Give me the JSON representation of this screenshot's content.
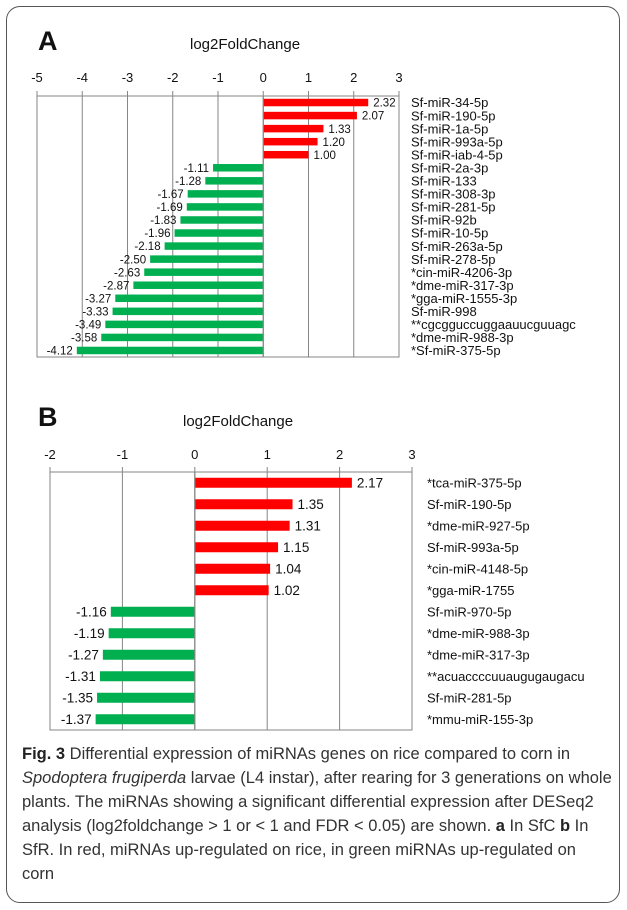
{
  "chart_data": [
    {
      "type": "bar",
      "orientation": "horizontal",
      "panel": "A",
      "title": "log2FoldChange",
      "xlim": [
        -5,
        3
      ],
      "ticks": [
        -5,
        -4,
        -3,
        -2,
        -1,
        0,
        1,
        2,
        3
      ],
      "grid": true,
      "colors": {
        "positive": "#ff0000",
        "negative": "#00b050"
      },
      "categories": [
        "Sf-miR-34-5p",
        "Sf-miR-190-5p",
        "Sf-miR-1a-5p",
        "Sf-miR-993a-5p",
        "Sf-miR-iab-4-5p",
        "Sf-miR-2a-3p",
        "Sf-miR-133",
        "Sf-miR-308-3p",
        "Sf-miR-281-5p",
        "Sf-miR-92b",
        "Sf-miR-10-5p",
        "Sf-miR-263a-5p",
        "Sf-miR-278-5p",
        "*cin-miR-4206-3p",
        "*dme-miR-317-3p",
        "*gga-miR-1555-3p",
        "Sf-miR-998",
        "**cgcgguccuggaauucguuagc",
        "*dme-miR-988-3p",
        "*Sf-miR-375-5p"
      ],
      "values": [
        2.32,
        2.07,
        1.33,
        1.2,
        1.0,
        -1.11,
        -1.28,
        -1.67,
        -1.69,
        -1.83,
        -1.96,
        -2.18,
        -2.5,
        -2.63,
        -2.87,
        -3.27,
        -3.33,
        -3.49,
        -3.58,
        -4.12
      ],
      "labels": [
        "2.32",
        "2.07",
        "1.33",
        "1.20",
        "1.00",
        "-1.11",
        "-1.28",
        "-1.67",
        "-1.69",
        "-1.83",
        "-1.96",
        "-2.18",
        "-2.50",
        "-2.63",
        "-2.87",
        "-3.27",
        "-3.33",
        "-3.49",
        "-3.58",
        "-4.12"
      ]
    },
    {
      "type": "bar",
      "orientation": "horizontal",
      "panel": "B",
      "title": "log2FoldChange",
      "xlim": [
        -2,
        3
      ],
      "ticks": [
        -2,
        -1,
        0,
        1,
        2,
        3
      ],
      "grid": true,
      "colors": {
        "positive": "#ff0000",
        "negative": "#00b050"
      },
      "categories": [
        "*tca-miR-375-5p",
        "Sf-miR-190-5p",
        "*dme-miR-927-5p",
        "Sf-miR-993a-5p",
        "*cin-miR-4148-5p",
        "*gga-miR-1755",
        "Sf-miR-970-5p",
        "*dme-miR-988-3p",
        "*dme-miR-317-3p",
        "**acuaccccuuaugugaugacu",
        "Sf-miR-281-5p",
        "*mmu-miR-155-3p"
      ],
      "values": [
        2.17,
        1.35,
        1.31,
        1.15,
        1.04,
        1.02,
        -1.16,
        -1.19,
        -1.27,
        -1.31,
        -1.35,
        -1.37
      ],
      "labels": [
        "2.17",
        "1.35",
        "1.31",
        "1.15",
        "1.04",
        "1.02",
        "-1.16",
        "-1.19",
        "-1.27",
        "-1.31",
        "-1.35",
        "-1.37"
      ]
    }
  ],
  "caption": {
    "fig_label": "Fig. 3",
    "part1": " Differential expression of miRNAs genes on rice compared to corn in ",
    "species": "Spodoptera frugiperda",
    "part2": " larvae (L4 instar), after rearing for 3 generations on whole plants. The miRNAs showing a significant differential expression after DESeq2 analysis (log2foldchange > 1 or < 1 and FDR < 0.05) are shown. ",
    "label_a": "a",
    "part3": " In SfC ",
    "label_b": "b",
    "part4": " In SfR. In red, miRNAs up-regulated on rice, in green miRNAs up-regulated on corn"
  }
}
